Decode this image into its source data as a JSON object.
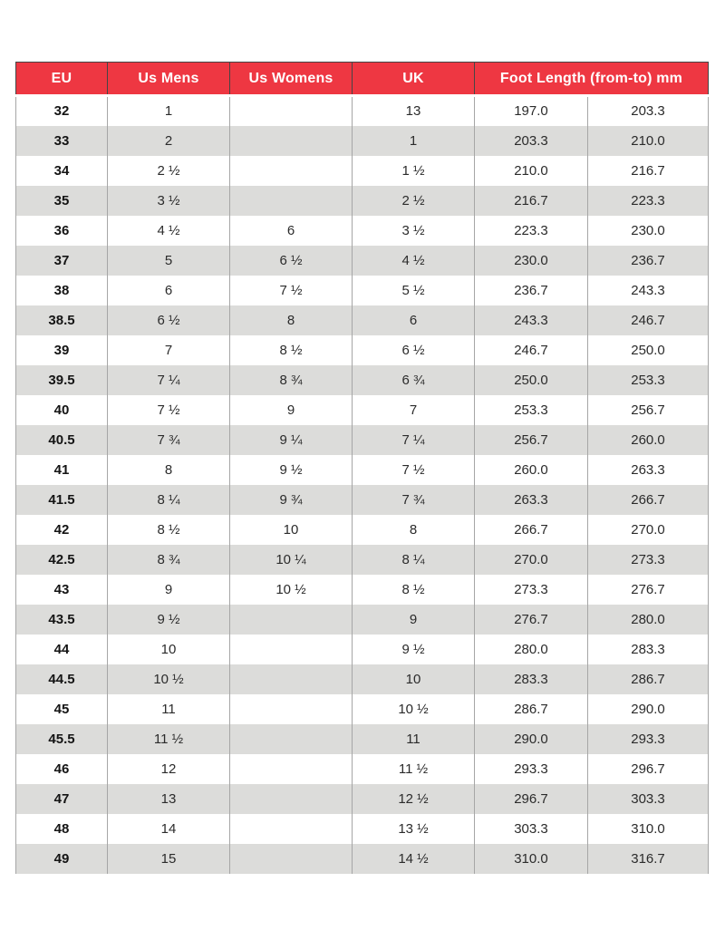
{
  "table": {
    "headers": [
      "EU",
      "Us Mens",
      "Us Womens",
      "UK",
      "Foot Length (from-to) mm"
    ],
    "rows": [
      {
        "eu": "32",
        "us_mens": "1",
        "us_womens": "",
        "uk": "13",
        "foot_from": "197.0",
        "foot_to": "203.3"
      },
      {
        "eu": "33",
        "us_mens": "2",
        "us_womens": "",
        "uk": "1",
        "foot_from": "203.3",
        "foot_to": "210.0"
      },
      {
        "eu": "34",
        "us_mens": "2 ½",
        "us_womens": "",
        "uk": "1 ½",
        "foot_from": "210.0",
        "foot_to": "216.7"
      },
      {
        "eu": "35",
        "us_mens": "3 ½",
        "us_womens": "",
        "uk": "2 ½",
        "foot_from": "216.7",
        "foot_to": "223.3"
      },
      {
        "eu": "36",
        "us_mens": "4 ½",
        "us_womens": "6",
        "uk": "3 ½",
        "foot_from": "223.3",
        "foot_to": "230.0"
      },
      {
        "eu": "37",
        "us_mens": "5",
        "us_womens": "6 ½",
        "uk": "4 ½",
        "foot_from": "230.0",
        "foot_to": "236.7"
      },
      {
        "eu": "38",
        "us_mens": "6",
        "us_womens": "7 ½",
        "uk": "5 ½",
        "foot_from": "236.7",
        "foot_to": "243.3"
      },
      {
        "eu": "38.5",
        "us_mens": "6 ½",
        "us_womens": "8",
        "uk": "6",
        "foot_from": "243.3",
        "foot_to": "246.7"
      },
      {
        "eu": "39",
        "us_mens": "7",
        "us_womens": "8 ½",
        "uk": "6 ½",
        "foot_from": "246.7",
        "foot_to": "250.0"
      },
      {
        "eu": "39.5",
        "us_mens": "7 ¼",
        "us_womens": "8 ¾",
        "uk": "6 ¾",
        "foot_from": "250.0",
        "foot_to": "253.3"
      },
      {
        "eu": "40",
        "us_mens": "7 ½",
        "us_womens": "9",
        "uk": "7",
        "foot_from": "253.3",
        "foot_to": "256.7"
      },
      {
        "eu": "40.5",
        "us_mens": "7 ¾",
        "us_womens": "9 ¼",
        "uk": "7 ¼",
        "foot_from": "256.7",
        "foot_to": "260.0"
      },
      {
        "eu": "41",
        "us_mens": "8",
        "us_womens": "9 ½",
        "uk": "7 ½",
        "foot_from": "260.0",
        "foot_to": "263.3"
      },
      {
        "eu": "41.5",
        "us_mens": "8 ¼",
        "us_womens": "9 ¾",
        "uk": "7 ¾",
        "foot_from": "263.3",
        "foot_to": "266.7"
      },
      {
        "eu": "42",
        "us_mens": "8 ½",
        "us_womens": "10",
        "uk": "8",
        "foot_from": "266.7",
        "foot_to": "270.0"
      },
      {
        "eu": "42.5",
        "us_mens": "8 ¾",
        "us_womens": "10 ¼",
        "uk": "8 ¼",
        "foot_from": "270.0",
        "foot_to": "273.3"
      },
      {
        "eu": "43",
        "us_mens": "9",
        "us_womens": "10 ½",
        "uk": "8 ½",
        "foot_from": "273.3",
        "foot_to": "276.7"
      },
      {
        "eu": "43.5",
        "us_mens": "9 ½",
        "us_womens": "",
        "uk": "9",
        "foot_from": "276.7",
        "foot_to": "280.0"
      },
      {
        "eu": "44",
        "us_mens": "10",
        "us_womens": "",
        "uk": "9 ½",
        "foot_from": "280.0",
        "foot_to": "283.3"
      },
      {
        "eu": "44.5",
        "us_mens": "10 ½",
        "us_womens": "",
        "uk": "10",
        "foot_from": "283.3",
        "foot_to": "286.7"
      },
      {
        "eu": "45",
        "us_mens": "11",
        "us_womens": "",
        "uk": "10 ½",
        "foot_from": "286.7",
        "foot_to": "290.0"
      },
      {
        "eu": "45.5",
        "us_mens": "11 ½",
        "us_womens": "",
        "uk": "11",
        "foot_from": "290.0",
        "foot_to": "293.3"
      },
      {
        "eu": "46",
        "us_mens": "12",
        "us_womens": "",
        "uk": "11 ½",
        "foot_from": "293.3",
        "foot_to": "296.7"
      },
      {
        "eu": "47",
        "us_mens": "13",
        "us_womens": "",
        "uk": "12 ½",
        "foot_from": "296.7",
        "foot_to": "303.3"
      },
      {
        "eu": "48",
        "us_mens": "14",
        "us_womens": "",
        "uk": "13 ½",
        "foot_from": "303.3",
        "foot_to": "310.0"
      },
      {
        "eu": "49",
        "us_mens": "15",
        "us_womens": "",
        "uk": "14 ½",
        "foot_from": "310.0",
        "foot_to": "316.7"
      }
    ]
  },
  "colors": {
    "header_bg": "#ee3742",
    "header_text": "#ffffff",
    "row_alt_bg": "#dcdcda"
  }
}
